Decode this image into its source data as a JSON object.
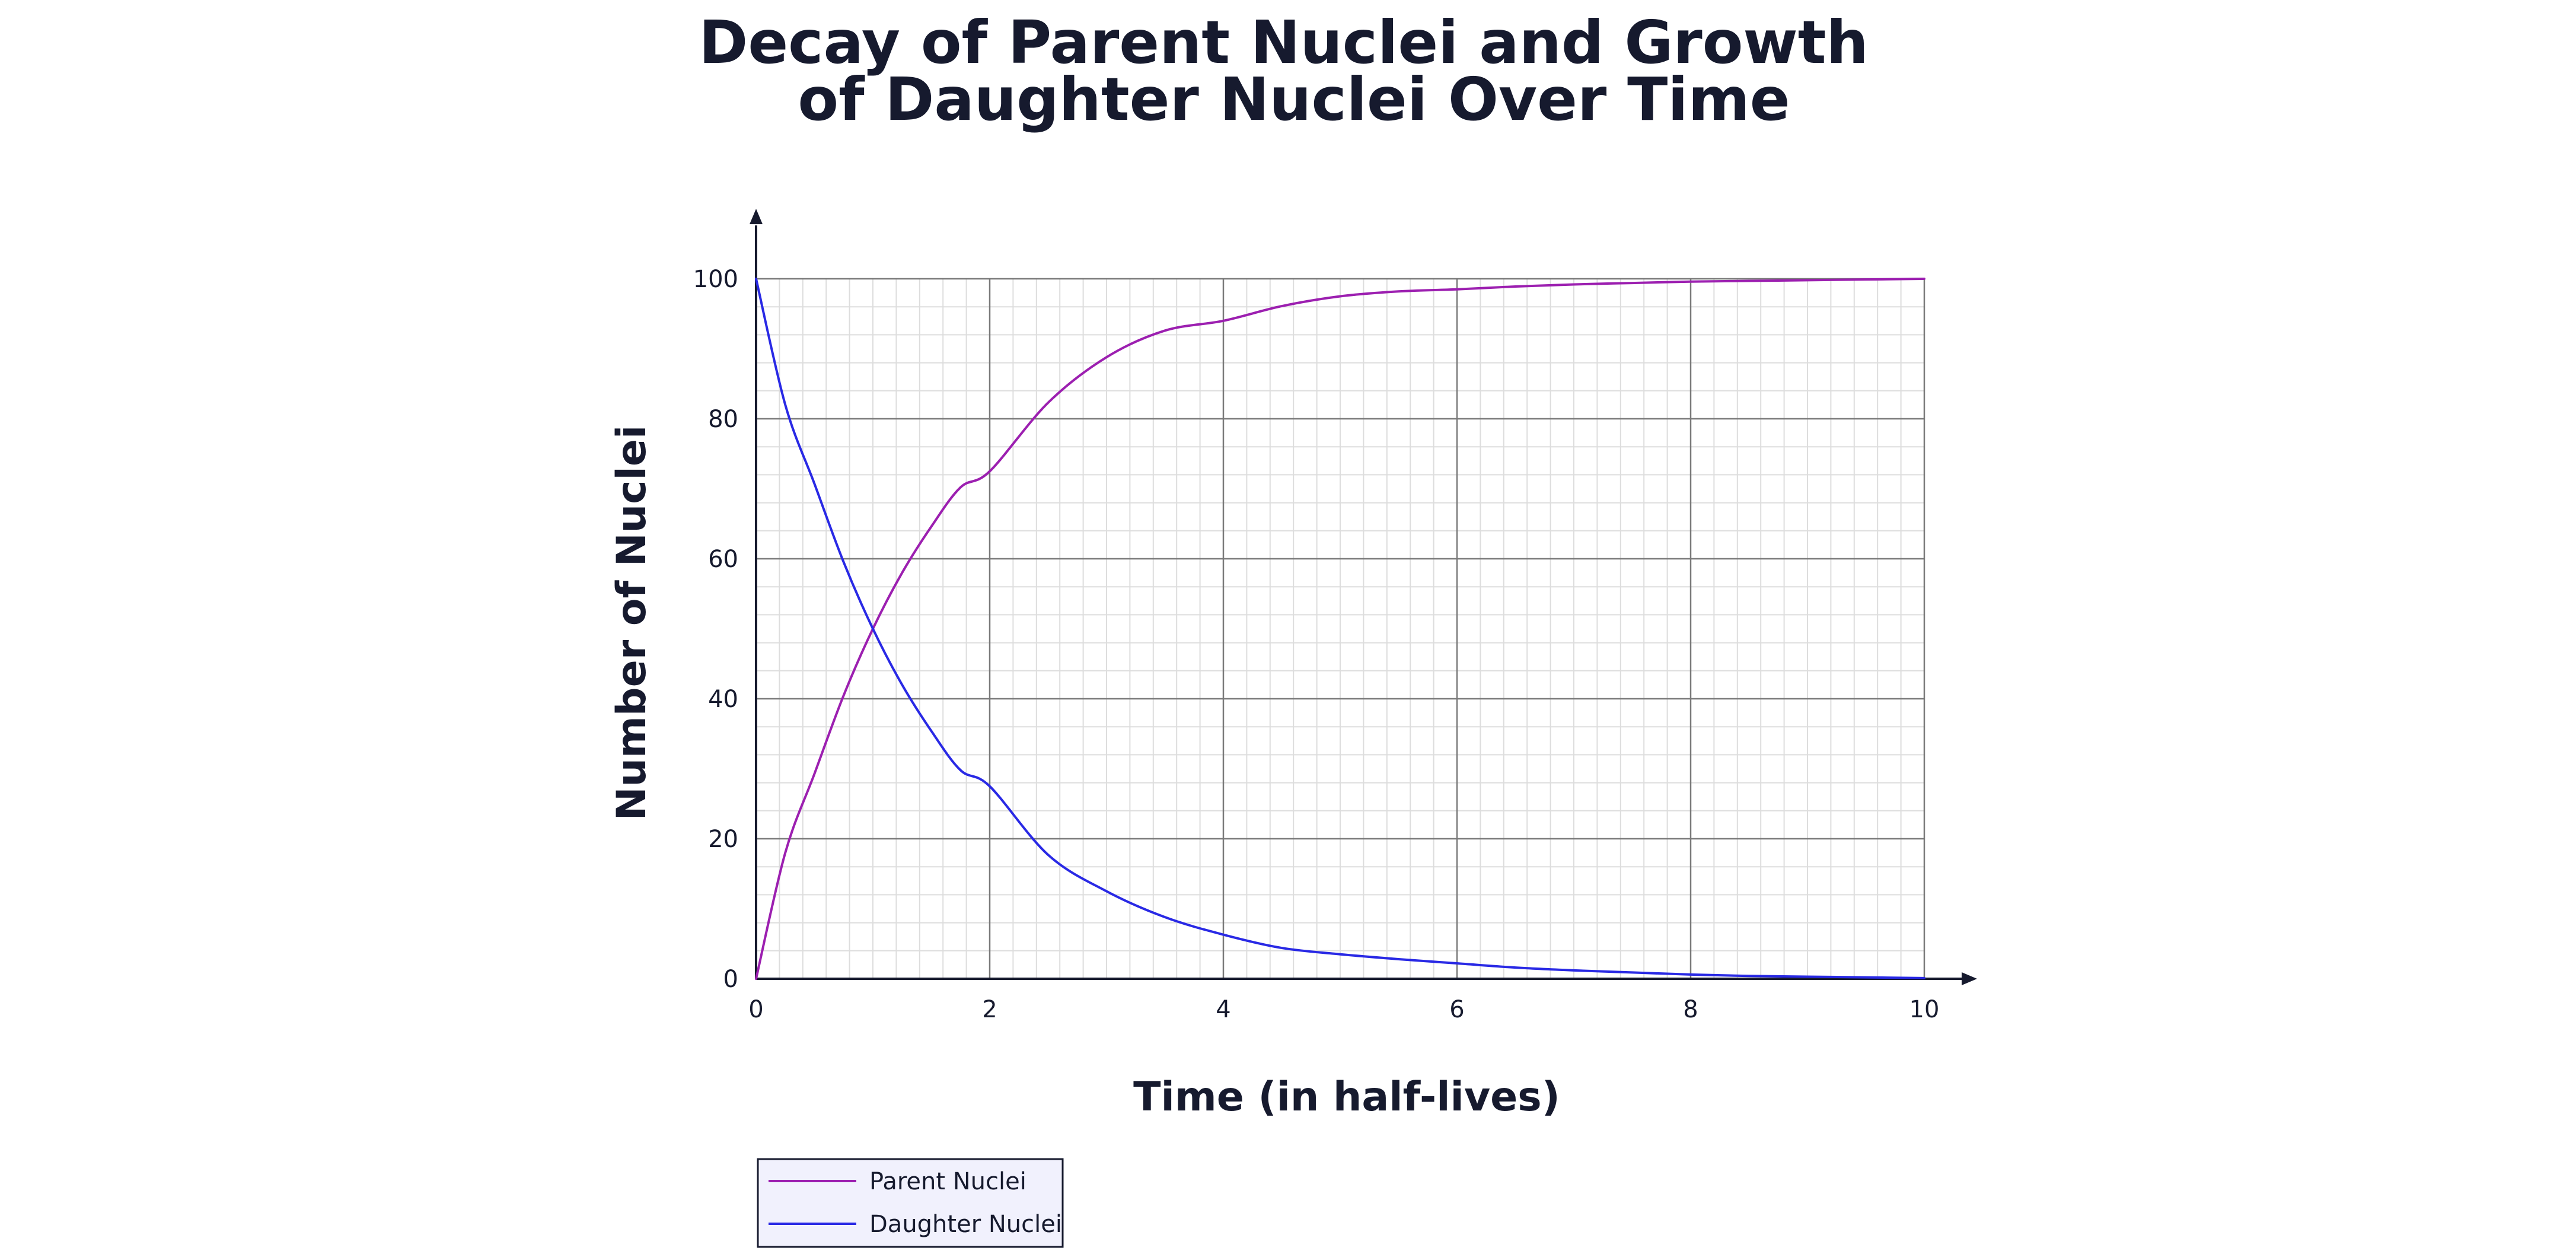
{
  "chart_data": {
    "type": "line",
    "title": [
      "Decay of Parent Nuclei and Growth",
      "of Daughter Nuclei Over Time"
    ],
    "xlabel": "Time (in half-lives)",
    "ylabel": "Number of Nuclei",
    "xlim": [
      0,
      10
    ],
    "ylim": [
      0,
      100
    ],
    "xticks": [
      0,
      2,
      4,
      6,
      8,
      10
    ],
    "yticks": [
      0,
      20,
      40,
      60,
      80,
      100
    ],
    "x_tick_labels": [
      "0",
      "2",
      "4",
      "6",
      "8",
      "10"
    ],
    "y_tick_labels": [
      "0",
      "20",
      "40",
      "60",
      "80",
      "100"
    ],
    "grid": true,
    "legend_position": "bottom-left",
    "series": [
      {
        "name": "Parent Nuclei",
        "color": "#9c1fb0",
        "x": [
          0,
          0.25,
          0.5,
          0.75,
          1,
          1.25,
          1.5,
          1.75,
          2,
          2.5,
          3,
          3.5,
          4,
          4.5,
          5,
          5.5,
          6,
          6.5,
          7,
          7.5,
          8,
          8.5,
          9,
          9.5,
          10
        ],
        "y": [
          0,
          18,
          29.3,
          40.5,
          50,
          58,
          64.6,
          70.2,
          72.5,
          82.3,
          88.8,
          92.6,
          94,
          96.1,
          97.5,
          98.2,
          98.5,
          98.9,
          99.2,
          99.4,
          99.6,
          99.7,
          99.8,
          99.9,
          100
        ]
      },
      {
        "name": "Daughter Nuclei",
        "color": "#2929e5",
        "x": [
          0,
          0.25,
          0.5,
          0.75,
          1,
          1.25,
          1.5,
          1.75,
          2,
          2.5,
          3,
          3.5,
          4,
          4.5,
          5,
          5.5,
          6,
          6.5,
          7,
          7.5,
          8,
          8.5,
          9,
          9.5,
          10
        ],
        "y": [
          100,
          82,
          70.7,
          59.5,
          50,
          42,
          35.4,
          29.8,
          27.5,
          17.7,
          12.5,
          8.8,
          6.3,
          4.4,
          3.5,
          2.8,
          2.2,
          1.6,
          1.2,
          0.9,
          0.6,
          0.4,
          0.3,
          0.2,
          0.1
        ]
      }
    ]
  }
}
